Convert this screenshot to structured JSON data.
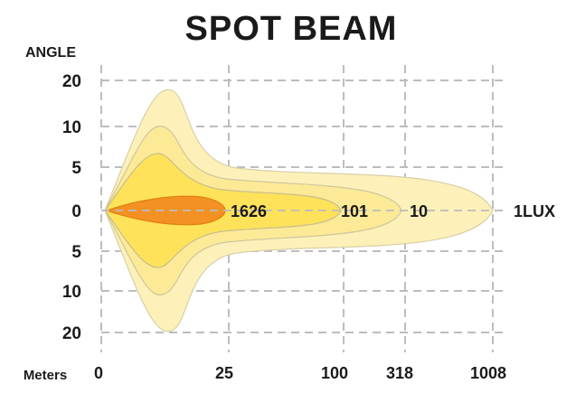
{
  "chart_data": {
    "type": "area",
    "title": "SPOT  BEAM",
    "ylabel": "ANGLE",
    "xlabel": "Meters",
    "y_ticks": [
      "20",
      "10",
      "5",
      "0",
      "5",
      "10",
      "20"
    ],
    "x_ticks": [
      "0",
      "25",
      "100",
      "318",
      "1008"
    ],
    "grid": true,
    "series": [
      {
        "value_label": "1LUX",
        "reach": "1008",
        "color": "#fdf1b9",
        "stroke": "#d8cfa8"
      },
      {
        "value_label": "10",
        "reach": "318",
        "color": "#fcea97",
        "stroke": "#d0c69c"
      },
      {
        "value_label": "101",
        "reach": "100",
        "color": "#fde25a",
        "stroke": "#c9bd8f"
      },
      {
        "value_label": "1626",
        "reach": "25",
        "color": "#f39122",
        "stroke": "#e07f12"
      }
    ]
  }
}
